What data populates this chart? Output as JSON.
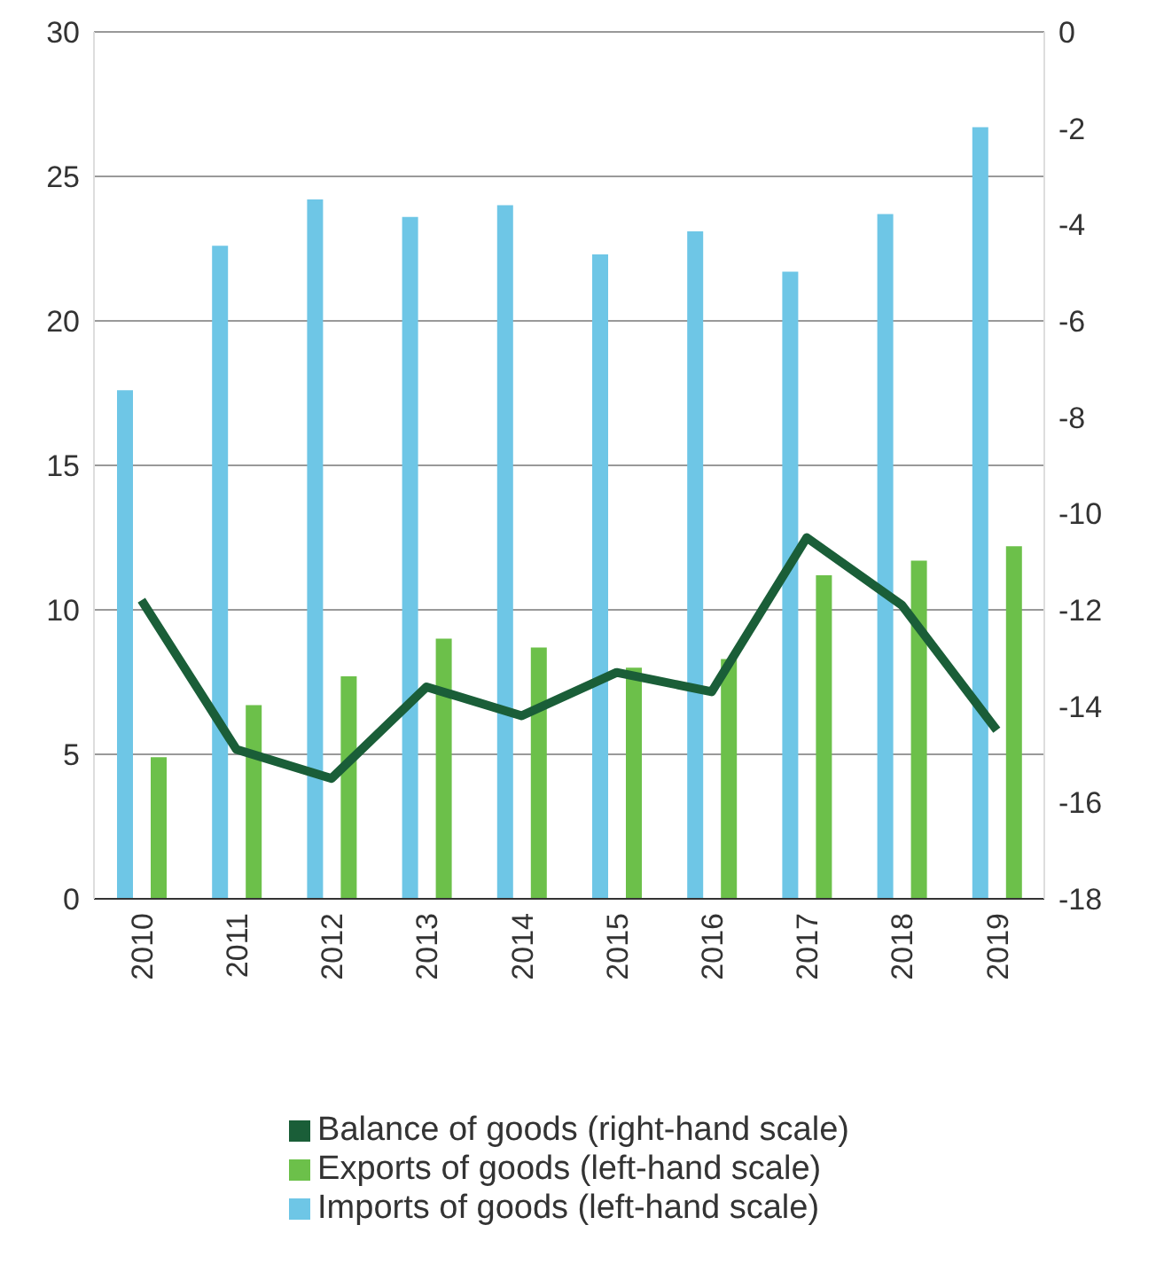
{
  "chart_data": {
    "type": "bar",
    "categories": [
      "2010",
      "2011",
      "2012",
      "2013",
      "2014",
      "2015",
      "2016",
      "2017",
      "2018",
      "2019"
    ],
    "series": [
      {
        "name": "Imports of goods (left-hand scale)",
        "color": "#6ec6e6",
        "values": [
          17.6,
          22.6,
          24.2,
          23.6,
          24.0,
          22.3,
          23.1,
          21.7,
          23.7,
          26.7
        ]
      },
      {
        "name": "Exports of goods (left-hand scale)",
        "color": "#6cc04a",
        "values": [
          4.9,
          6.7,
          7.7,
          9.0,
          8.7,
          8.0,
          8.3,
          11.2,
          11.7,
          12.2
        ]
      },
      {
        "name": "Balance of goods (right-hand scale)",
        "color": "#1a5e38",
        "type": "line",
        "axis": "y2",
        "values": [
          -11.8,
          -14.9,
          -15.5,
          -13.6,
          -14.2,
          -13.3,
          -13.7,
          -10.5,
          -11.9,
          -14.5
        ]
      }
    ],
    "ylim": [
      0,
      30
    ],
    "yticks": [
      0,
      5,
      10,
      15,
      20,
      25,
      30
    ],
    "y2lim": [
      -18,
      0
    ],
    "y2ticks": [
      -18,
      -16,
      -14,
      -12,
      -10,
      -8,
      -6,
      -4,
      -2,
      0
    ],
    "grid": "y",
    "legend": "bottom",
    "marker": "none",
    "line_style": "solid"
  }
}
